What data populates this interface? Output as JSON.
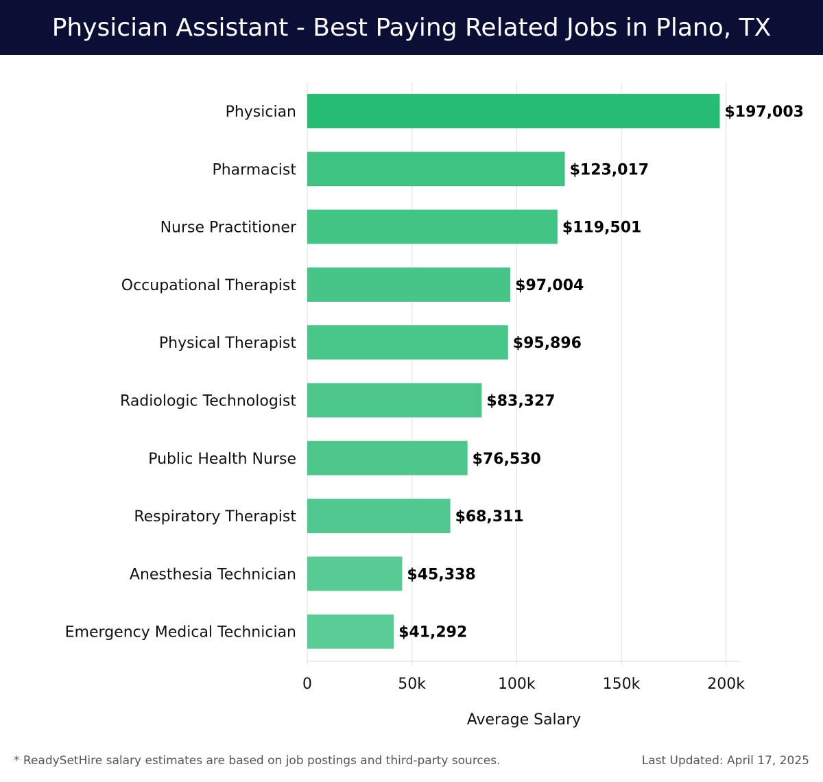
{
  "header": {
    "title": "Physician Assistant - Best Paying Related Jobs in Plano, TX"
  },
  "chart_data": {
    "type": "bar",
    "orientation": "horizontal",
    "title": "Physician Assistant - Best Paying Related Jobs in Plano, TX",
    "xlabel": "Average Salary",
    "ylabel": "",
    "xlim": [
      0,
      207000
    ],
    "x_ticks": [
      0,
      50000,
      100000,
      150000,
      200000
    ],
    "x_tick_labels": [
      "0",
      "50k",
      "100k",
      "150k",
      "200k"
    ],
    "grid": "vertical",
    "categories": [
      "Physician",
      "Pharmacist",
      "Nurse Practitioner",
      "Occupational Therapist",
      "Physical Therapist",
      "Radiologic Technologist",
      "Public Health Nurse",
      "Respiratory Therapist",
      "Anesthesia Technician",
      "Emergency Medical Technician"
    ],
    "values": [
      197003,
      123017,
      119501,
      97004,
      95896,
      83327,
      76530,
      68311,
      45338,
      41292
    ],
    "value_labels": [
      "$197,003",
      "$123,017",
      "$119,501",
      "$97,004",
      "$95,896",
      "$83,327",
      "$76,530",
      "$68,311",
      "$45,338",
      "$41,292"
    ],
    "colors": [
      "#27bc74",
      "#3fc383",
      "#42c485",
      "#47c588",
      "#49c68a",
      "#4cc68b",
      "#4ec78d",
      "#51c88f",
      "#57cb93",
      "#5acc95"
    ],
    "grid_color": "#dddddd"
  },
  "footer": {
    "note": "* ReadySetHire salary estimates are based on job postings and third-party sources.",
    "updated": "Last Updated: April 17, 2025"
  }
}
